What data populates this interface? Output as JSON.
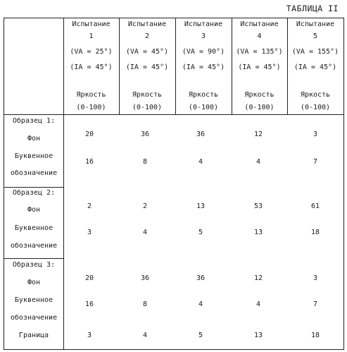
{
  "title": "ТАБЛИЦА II",
  "header": {
    "tests": [
      {
        "name": "Испытание",
        "num": "1",
        "va": "(VA = 25°)",
        "ia": "(IA = 45°)"
      },
      {
        "name": "Испытание",
        "num": "2",
        "va": "(VA = 45°)",
        "ia": "(IA = 45°)"
      },
      {
        "name": "Испытание",
        "num": "3",
        "va": "(VA = 90°)",
        "ia": "(IA = 45°)"
      },
      {
        "name": "Испытание",
        "num": "4",
        "va": "(VA = 135°)",
        "ia": "(IA = 45°)"
      },
      {
        "name": "Испытание",
        "num": "5",
        "va": "(VA = 155°)",
        "ia": "(IA = 45°)"
      }
    ],
    "brightness_label": "Яркость",
    "brightness_range": "(0-100)"
  },
  "samples": [
    {
      "title": "Образец 1:",
      "rows": [
        {
          "label": "Фон",
          "values": [
            "20",
            "36",
            "36",
            "12",
            "3"
          ]
        },
        {
          "label": "Буквенное",
          "label2": "обозначение",
          "values": [
            "16",
            "8",
            "4",
            "4",
            "7"
          ]
        }
      ]
    },
    {
      "title": "Образец 2:",
      "rows": [
        {
          "label": "Фон",
          "values": [
            "2",
            "2",
            "13",
            "53",
            "61"
          ]
        },
        {
          "label": "Буквенное",
          "label2": "обозначение",
          "values": [
            "3",
            "4",
            "5",
            "13",
            "18"
          ]
        }
      ]
    },
    {
      "title": "Образец 3:",
      "rows": [
        {
          "label": "Фон",
          "values": [
            "20",
            "36",
            "36",
            "12",
            "3"
          ]
        },
        {
          "label": "Буквенное",
          "label2": "обозначение",
          "values": [
            "16",
            "8",
            "4",
            "4",
            "7"
          ]
        },
        {
          "label": "Граница",
          "values": [
            "3",
            "4",
            "5",
            "13",
            "18"
          ]
        }
      ]
    }
  ]
}
